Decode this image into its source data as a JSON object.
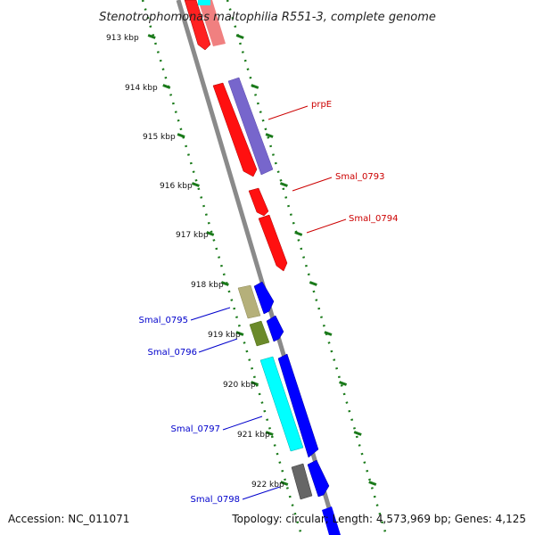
{
  "title": "Stenotrophomonas maltophilia R551-3, complete genome",
  "footer": {
    "accession": "Accession: NC_011071",
    "summary": "Topology: circular; Length: 4,573,969 bp; Genes: 4,125"
  },
  "scale_labels": [
    "913 kbp",
    "914 kbp",
    "915 kbp",
    "916 kbp",
    "917 kbp",
    "918 kbp",
    "919 kbp",
    "920 kbp",
    "921 kbp",
    "922 kbp"
  ],
  "gene_labels": [
    {
      "text": "prpE",
      "color": "#cc0000"
    },
    {
      "text": "Smal_0793",
      "color": "#cc0000"
    },
    {
      "text": "Smal_0794",
      "color": "#cc0000"
    },
    {
      "text": "Smal_0795",
      "color": "#0000cc"
    },
    {
      "text": "Smal_0796",
      "color": "#0000cc"
    },
    {
      "text": "Smal_0797",
      "color": "#0000cc"
    },
    {
      "text": "Smal_0798",
      "color": "#0000cc"
    }
  ],
  "colors": {
    "backbone": "#888888",
    "ticks": "#1a7a1a",
    "cds_forward": "#ff0000",
    "cds_reverse": "#0000ff",
    "rna": "#00ffff",
    "other_purple": "#7766cc",
    "other_olive": "#b5b07a",
    "other_green": "#6b8a2a",
    "other_gray": "#666666"
  }
}
